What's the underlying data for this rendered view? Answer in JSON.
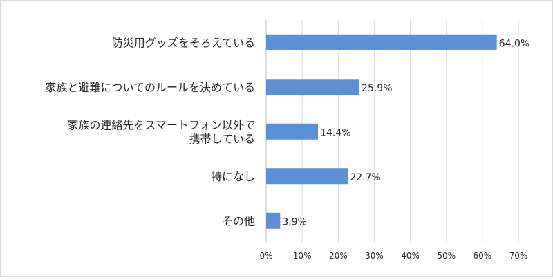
{
  "chart_data": {
    "type": "bar",
    "orientation": "horizontal",
    "categories": [
      [
        "防災用グッズをそろえている"
      ],
      [
        "家族と避難についてのルールを決めている"
      ],
      [
        "家族の連絡先をスマートフォン以外で",
        "携帯している"
      ],
      [
        "特になし"
      ],
      [
        "その他"
      ]
    ],
    "values": [
      64.0,
      25.9,
      14.4,
      22.7,
      3.9
    ],
    "value_labels": [
      "64.0%",
      "25.9%",
      "14.4%",
      "22.7%",
      "3.9%"
    ],
    "xlim": [
      0,
      70
    ],
    "x_ticks": [
      "0%",
      "10%",
      "20%",
      "30%",
      "40%",
      "50%",
      "60%",
      "70%"
    ],
    "grid": "vertical",
    "bar_color": "#5b8fd6",
    "grid_color": "#d9d9d9"
  }
}
